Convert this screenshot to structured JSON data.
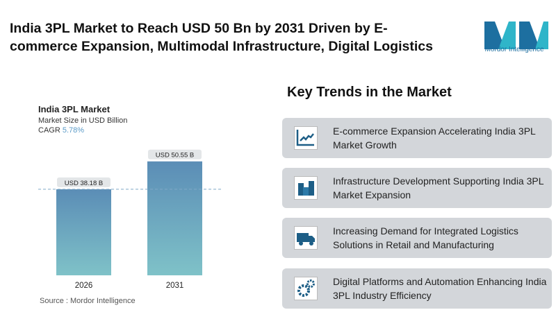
{
  "header": {
    "title": "India 3PL Market to Reach USD 50 Bn by 2031 Driven by E-commerce Expansion, Multimodal Infrastructure, Digital Logistics",
    "logo_text": "Mordor Intelligence"
  },
  "chart_panel": {
    "title": "India 3PL Market",
    "subtitle": "Market Size in USD Billion",
    "cagr_label": "CAGR",
    "cagr_value": "5.78%",
    "source": "Source :  Mordor Intelligence"
  },
  "chart_data": {
    "type": "bar",
    "title": "India 3PL Market",
    "ylabel": "Market Size in USD Billion",
    "categories": [
      "2026",
      "2031"
    ],
    "values": [
      38.18,
      50.55
    ],
    "data_labels": [
      "USD 38.18 B",
      "USD 50.55 B"
    ],
    "ylim": [
      0,
      55
    ],
    "grid": false,
    "reference_line": 38.18,
    "colors": {
      "bar_top": "#5b8db6",
      "bar_bottom": "#7fc2c8",
      "reference": "#7fa9c8"
    }
  },
  "trends": {
    "title": "Key Trends in the Market",
    "items": [
      {
        "icon": "line-chart-icon",
        "label": "E-commerce Expansion Accelerating India 3PL Market Growth"
      },
      {
        "icon": "buildings-icon",
        "label": "Infrastructure Development Supporting India 3PL Market Expansion"
      },
      {
        "icon": "truck-icon",
        "label": "Increasing Demand for Integrated Logistics Solutions in Retail and Manufacturing"
      },
      {
        "icon": "gears-icon",
        "label": "Digital Platforms and Automation Enhancing India 3PL Industry Efficiency"
      }
    ]
  }
}
